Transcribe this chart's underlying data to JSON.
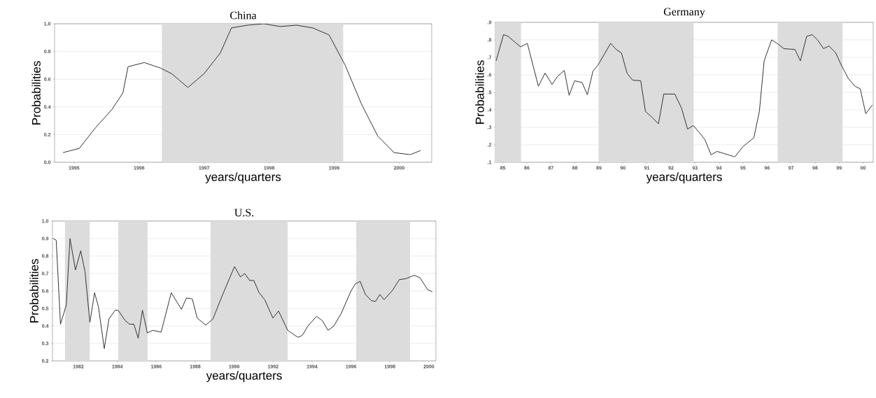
{
  "chart_data": [
    {
      "type": "line",
      "title": "China",
      "xlabel": "years/quarters",
      "ylabel": "Probabilities",
      "color": "#333333",
      "grid": "y",
      "x": [
        1994.83,
        1995.08,
        1995.33,
        1995.58,
        1995.75,
        1995.83,
        1996.08,
        1996.33,
        1996.5,
        1996.75,
        1997.0,
        1997.25,
        1997.42,
        1997.67,
        1997.92,
        1998.17,
        1998.42,
        1998.67,
        1998.92,
        1999.17,
        1999.42,
        1999.67,
        1999.92,
        2000.17,
        2000.33
      ],
      "values": [
        0.07,
        0.1,
        0.25,
        0.38,
        0.5,
        0.69,
        0.72,
        0.68,
        0.64,
        0.54,
        0.64,
        0.79,
        0.97,
        0.99,
        1.0,
        0.98,
        0.99,
        0.97,
        0.92,
        0.7,
        0.42,
        0.19,
        0.07,
        0.055,
        0.085
      ],
      "xlim": [
        1994.7,
        2000.5
      ],
      "ylim": [
        0,
        1
      ],
      "xticks": [
        1995,
        1996,
        1997,
        1998,
        1999,
        2000
      ],
      "yticks": [
        {
          "value": 0,
          "label": "0.0"
        },
        {
          "value": 0.2,
          "label": "0.2"
        },
        {
          "value": 0.4,
          "label": "0.4"
        },
        {
          "value": 0.6,
          "label": "0.6"
        },
        {
          "value": 0.8,
          "label": "0.8"
        },
        {
          "value": 1,
          "label": "1.0"
        }
      ],
      "bands": [
        {
          "axis": "x",
          "from": 1996.35,
          "to": 1999.14,
          "color": "#dcdcdc"
        }
      ]
    },
    {
      "type": "line",
      "title": "Germany",
      "xlabel": "years/quarters",
      "ylabel": "Probabilities",
      "color": "#333333",
      "grid": "y",
      "x": [
        1984.72,
        1985.03,
        1985.22,
        1985.74,
        1986.02,
        1986.48,
        1986.76,
        1987.05,
        1987.27,
        1987.56,
        1987.76,
        1987.99,
        1988.3,
        1988.52,
        1988.75,
        1988.98,
        1989.49,
        1989.72,
        1989.94,
        1990.17,
        1990.4,
        1990.74,
        1990.94,
        1991.19,
        1991.48,
        1991.7,
        1992.16,
        1992.44,
        1992.69,
        1992.93,
        1993.18,
        1993.41,
        1993.67,
        1993.92,
        1994.38,
        1994.66,
        1995.0,
        1995.45,
        1995.68,
        1995.88,
        1996.19,
        1996.42,
        1996.7,
        1997.16,
        1997.39,
        1997.65,
        1997.88,
        1998.1,
        1998.35,
        1998.58,
        1998.86,
        1999.09,
        1999.38,
        1999.66,
        1999.88,
        2000.11,
        2000.38
      ],
      "values": [
        0.68,
        0.83,
        0.82,
        0.76,
        0.78,
        0.535,
        0.61,
        0.545,
        0.59,
        0.625,
        0.483,
        0.566,
        0.556,
        0.486,
        0.62,
        0.66,
        0.78,
        0.745,
        0.725,
        0.61,
        0.57,
        0.566,
        0.39,
        0.36,
        0.32,
        0.49,
        0.49,
        0.41,
        0.29,
        0.31,
        0.27,
        0.23,
        0.143,
        0.162,
        0.143,
        0.131,
        0.19,
        0.24,
        0.39,
        0.68,
        0.8,
        0.78,
        0.75,
        0.745,
        0.68,
        0.82,
        0.83,
        0.8,
        0.75,
        0.765,
        0.725,
        0.656,
        0.58,
        0.535,
        0.52,
        0.378,
        0.427
      ],
      "xlim": [
        1984.69,
        2000.42
      ],
      "ylim": [
        0.1,
        0.9
      ],
      "xticks": [
        {
          "value": 1985,
          "label": "85"
        },
        {
          "value": 1986,
          "label": "86"
        },
        {
          "value": 1987,
          "label": "87"
        },
        {
          "value": 1988,
          "label": "88"
        },
        {
          "value": 1989,
          "label": "89"
        },
        {
          "value": 1990,
          "label": "90"
        },
        {
          "value": 1991,
          "label": "91"
        },
        {
          "value": 1992,
          "label": "92"
        },
        {
          "value": 1993,
          "label": "93"
        },
        {
          "value": 1994,
          "label": "94"
        },
        {
          "value": 1995,
          "label": "95"
        },
        {
          "value": 1996,
          "label": "96"
        },
        {
          "value": 1997,
          "label": "97"
        },
        {
          "value": 1998,
          "label": "98"
        },
        {
          "value": 1999,
          "label": "99"
        },
        {
          "value": 2000,
          "label": "00"
        }
      ],
      "yticks": [
        {
          "value": 0.1,
          "label": ".1"
        },
        {
          "value": 0.2,
          "label": ".2"
        },
        {
          "value": 0.3,
          "label": ".3"
        },
        {
          "value": 0.4,
          "label": ".4"
        },
        {
          "value": 0.5,
          "label": ".5"
        },
        {
          "value": 0.6,
          "label": ".6"
        },
        {
          "value": 0.7,
          "label": ".7"
        },
        {
          "value": 0.8,
          "label": ".8"
        },
        {
          "value": 0.9,
          "label": ".9"
        }
      ],
      "bands": [
        {
          "axis": "x",
          "from": 1984.69,
          "to": 1985.76,
          "color": "#dcdcdc"
        },
        {
          "axis": "x",
          "from": 1988.98,
          "to": 1992.95,
          "color": "#dcdcdc"
        },
        {
          "axis": "x",
          "from": 1996.44,
          "to": 1999.15,
          "color": "#dcdcdc"
        }
      ]
    },
    {
      "type": "line",
      "title": "U.S.",
      "xlabel": "years/quarters",
      "ylabel": "Probabilities",
      "color": "#333333",
      "grid": "y",
      "x": [
        1980.71,
        1980.86,
        1981.08,
        1981.38,
        1981.57,
        1981.85,
        1982.12,
        1982.34,
        1982.59,
        1982.83,
        1983.03,
        1983.33,
        1983.57,
        1983.89,
        1984.04,
        1984.41,
        1984.63,
        1984.85,
        1985.07,
        1985.29,
        1985.54,
        1985.81,
        1986.25,
        1986.77,
        1987.29,
        1987.55,
        1987.85,
        1988.1,
        1988.54,
        1988.91,
        1989.43,
        1990.02,
        1990.32,
        1990.54,
        1990.8,
        1991.01,
        1991.28,
        1991.57,
        1991.99,
        1992.28,
        1992.75,
        1993.27,
        1993.49,
        1993.79,
        1994.23,
        1994.53,
        1994.82,
        1995.12,
        1995.49,
        1996.0,
        1996.22,
        1996.47,
        1996.74,
        1997.04,
        1997.26,
        1997.48,
        1997.7,
        1998.14,
        1998.48,
        1998.81,
        1999.25,
        1999.55,
        1999.92,
        2000.17
      ],
      "values": [
        0.9,
        0.89,
        0.41,
        0.52,
        0.9,
        0.72,
        0.83,
        0.71,
        0.42,
        0.59,
        0.51,
        0.27,
        0.44,
        0.49,
        0.49,
        0.43,
        0.41,
        0.41,
        0.33,
        0.49,
        0.36,
        0.375,
        0.365,
        0.59,
        0.495,
        0.56,
        0.555,
        0.445,
        0.405,
        0.44,
        0.585,
        0.74,
        0.68,
        0.7,
        0.66,
        0.66,
        0.59,
        0.55,
        0.445,
        0.485,
        0.375,
        0.335,
        0.345,
        0.4,
        0.455,
        0.43,
        0.375,
        0.4,
        0.47,
        0.6,
        0.64,
        0.655,
        0.58,
        0.545,
        0.54,
        0.58,
        0.55,
        0.605,
        0.665,
        0.67,
        0.69,
        0.675,
        0.61,
        0.595
      ],
      "xlim": [
        1980.67,
        2000.36
      ],
      "ylim": [
        0.2,
        1
      ],
      "xticks": [
        1982,
        1984,
        1986,
        1988,
        1990,
        1992,
        1994,
        1996,
        1998,
        2000
      ],
      "yticks": [
        0.2,
        0.3,
        0.4,
        0.5,
        0.6,
        0.7,
        0.8,
        0.9,
        {
          "value": 1,
          "label": "1.0"
        }
      ],
      "bands": [
        {
          "axis": "x",
          "from": 1981.31,
          "to": 1982.59,
          "color": "#dcdcdc"
        },
        {
          "axis": "x",
          "from": 1984.04,
          "to": 1985.55,
          "color": "#dcdcdc"
        },
        {
          "axis": "x",
          "from": 1988.79,
          "to": 1992.75,
          "color": "#dcdcdc"
        },
        {
          "axis": "x",
          "from": 1996.27,
          "to": 1999.03,
          "color": "#dcdcdc"
        }
      ]
    }
  ]
}
